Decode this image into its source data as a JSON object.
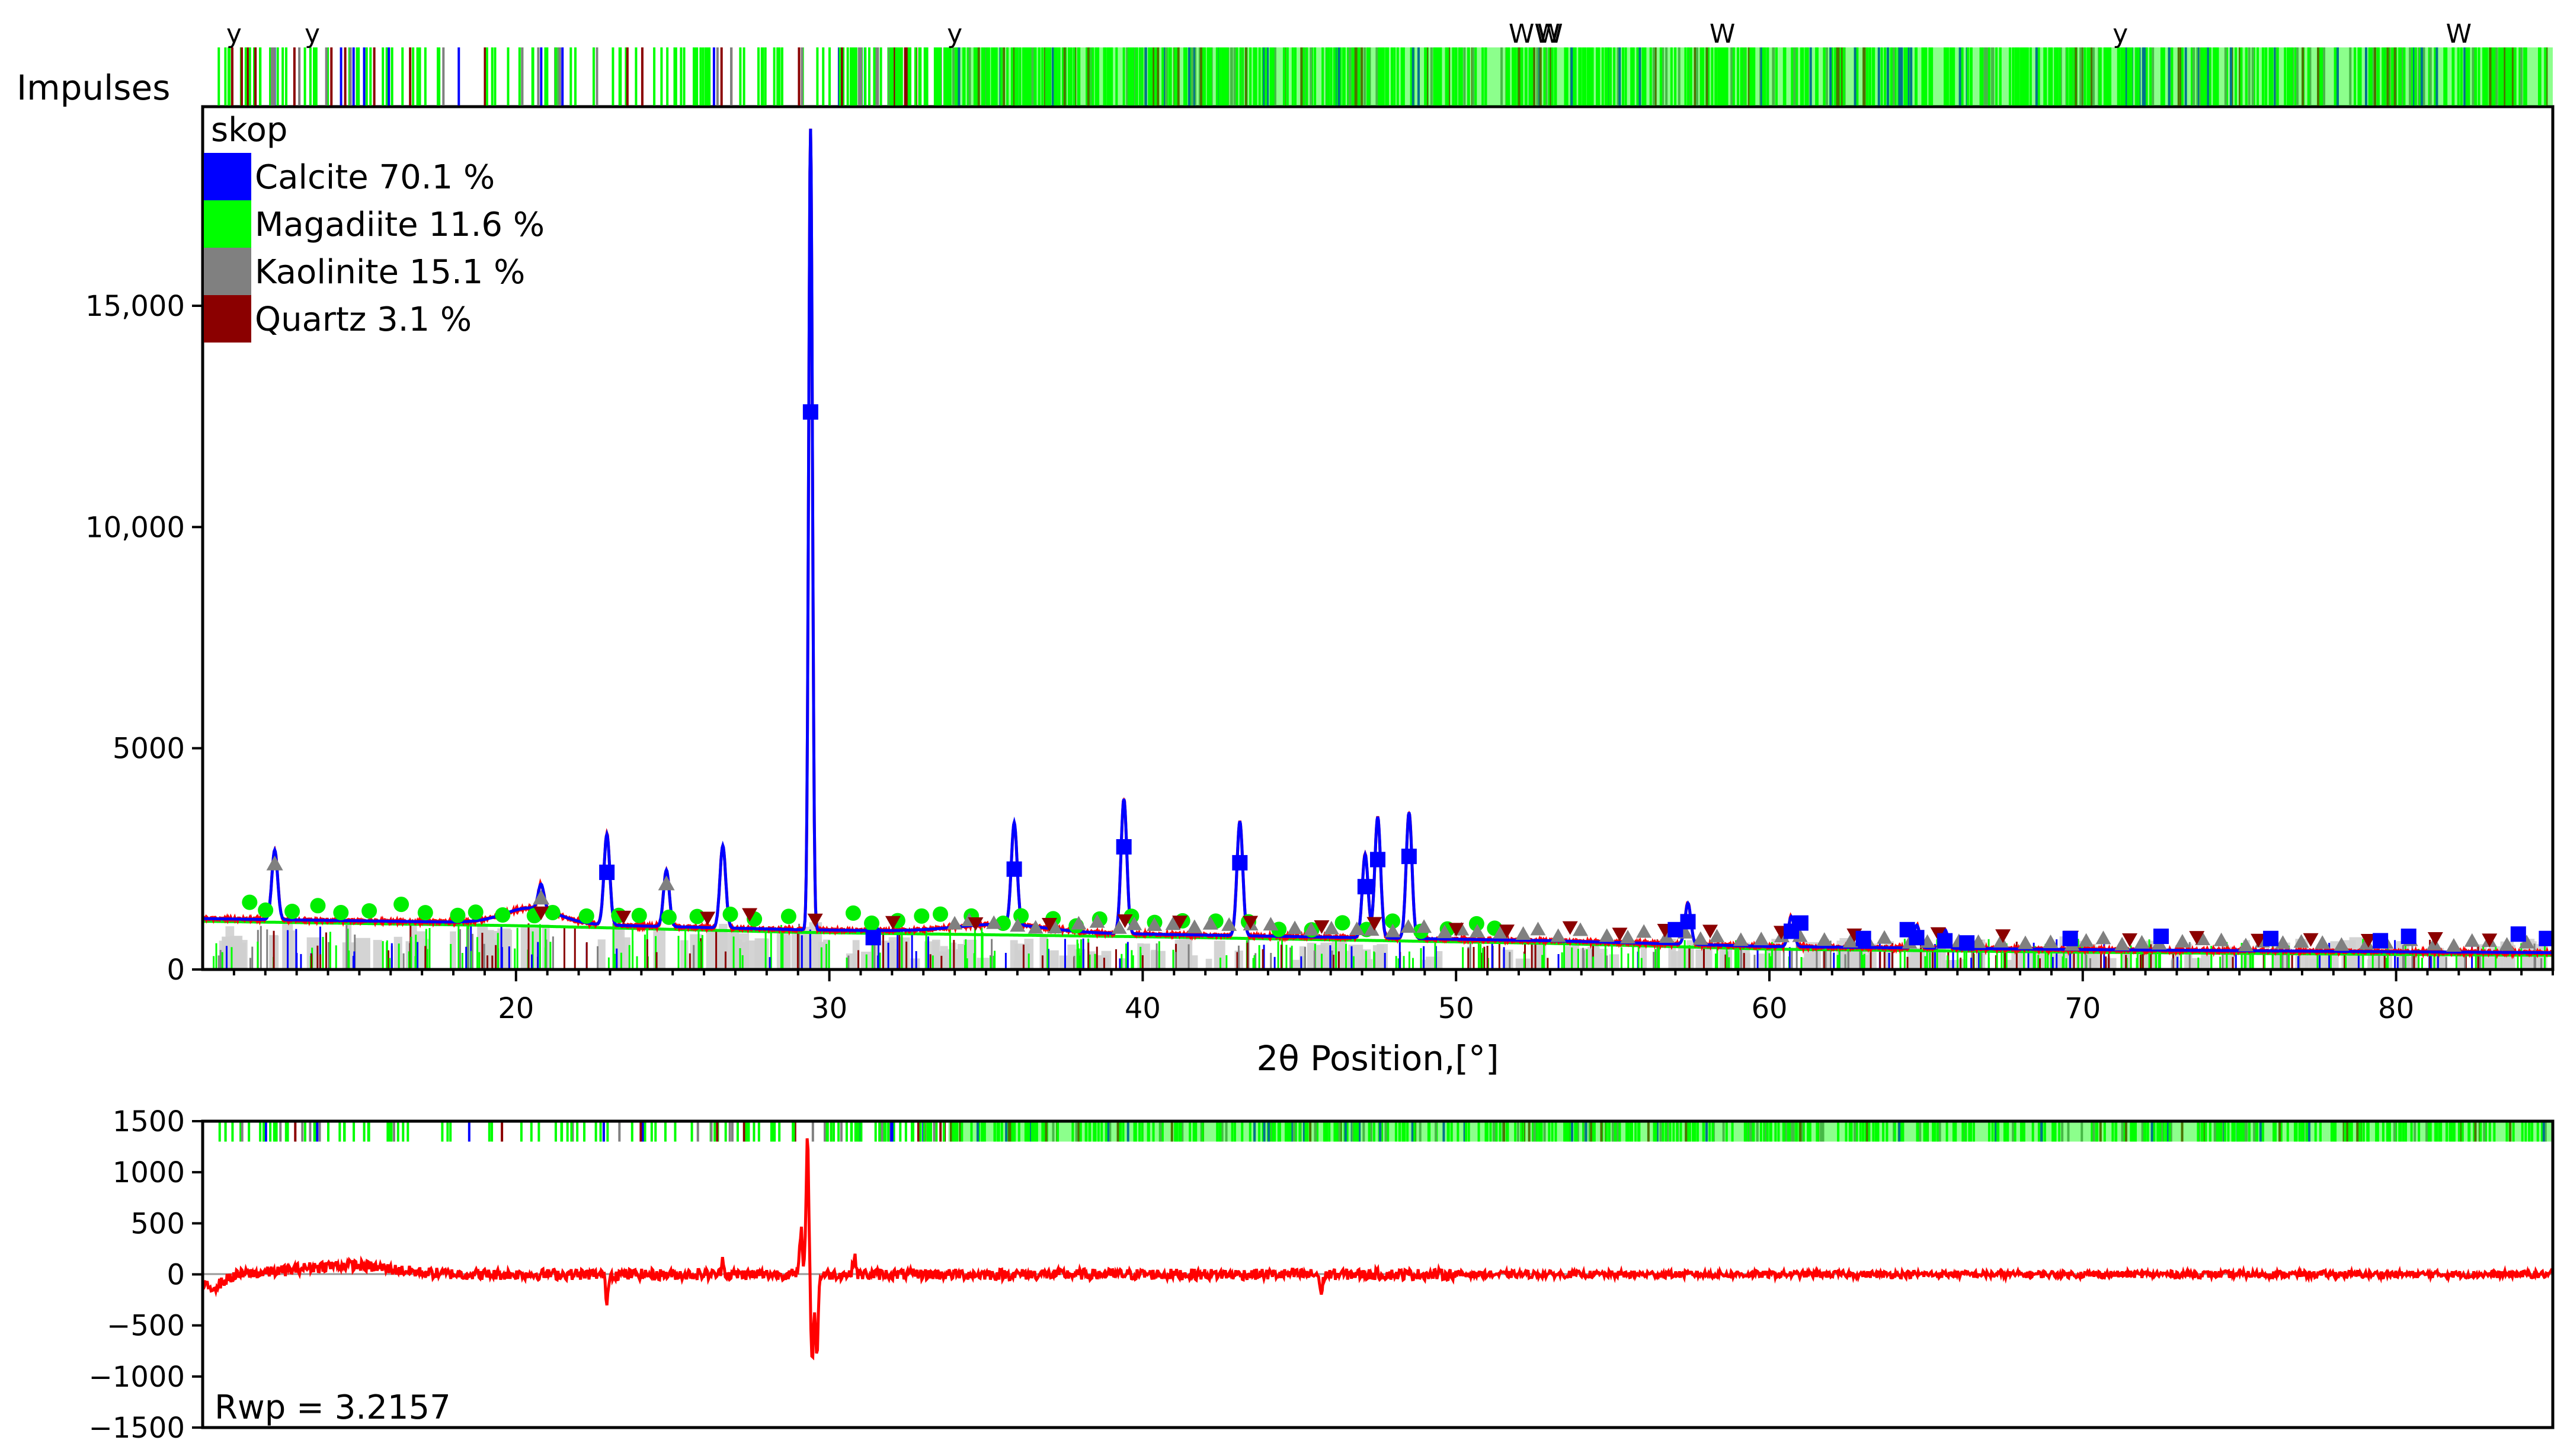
{
  "chart_data": [
    {
      "type": "line",
      "legend_title": "skop",
      "legend_position": "top-left",
      "impulses_label": "Impulses",
      "xlabel": "2θ Position,[°]",
      "ylabel": "",
      "xlim": [
        10,
        85
      ],
      "ylim": [
        0,
        19500
      ],
      "x_ticks": [
        20,
        30,
        40,
        50,
        60,
        70,
        80
      ],
      "x_tick_labels": [
        "20",
        "30",
        "40",
        "50",
        "60",
        "70",
        "80"
      ],
      "y_ticks": [
        0,
        5000,
        10000,
        15000
      ],
      "y_tick_labels": [
        "0",
        "5000",
        "10,000",
        "15,000"
      ],
      "grid": false,
      "series": [
        {
          "name": "Calcite",
          "label": "Calcite 70.1 %",
          "color": "#0000ff"
        },
        {
          "name": "Magadiite",
          "label": "Magadiite 11.6 %",
          "color": "#00ff00"
        },
        {
          "name": "Kaolinite",
          "label": "Kaolinite 15.1 %",
          "color": "#808080"
        },
        {
          "name": "Quartz",
          "label": "Quartz 3.1 %",
          "color": "#8b0000"
        }
      ],
      "pattern": {
        "baseline": [
          [
            10,
            1150
          ],
          [
            20,
            1050
          ],
          [
            29,
            900
          ],
          [
            40,
            800
          ],
          [
            53,
            650
          ],
          [
            60,
            520
          ],
          [
            70,
            450
          ],
          [
            80,
            400
          ],
          [
            85,
            380
          ]
        ],
        "peaks": [
          {
            "x": 12.3,
            "y": 2700,
            "phase": "Kaolinite"
          },
          {
            "x": 20.8,
            "y": 1600,
            "phase": "Kaolinite"
          },
          {
            "x": 22.9,
            "y": 3050,
            "phase": "Calcite"
          },
          {
            "x": 24.8,
            "y": 2250,
            "phase": "Kaolinite"
          },
          {
            "x": 26.6,
            "y": 2800,
            "phase": "Quartz"
          },
          {
            "x": 29.4,
            "y": 19000,
            "phase": "Calcite"
          },
          {
            "x": 31.4,
            "y": 1000,
            "phase": "Calcite"
          },
          {
            "x": 35.9,
            "y": 3150,
            "phase": "Calcite"
          },
          {
            "x": 39.4,
            "y": 3850,
            "phase": "Calcite"
          },
          {
            "x": 43.1,
            "y": 3350,
            "phase": "Calcite"
          },
          {
            "x": 47.1,
            "y": 2600,
            "phase": "Calcite"
          },
          {
            "x": 47.5,
            "y": 3450,
            "phase": "Calcite"
          },
          {
            "x": 48.5,
            "y": 3550,
            "phase": "Calcite"
          },
          {
            "x": 57.4,
            "y": 1500,
            "phase": "Calcite"
          },
          {
            "x": 60.7,
            "y": 1200,
            "phase": "Calcite"
          },
          {
            "x": 64.7,
            "y": 1000,
            "phase": "Calcite"
          },
          {
            "x": 65.6,
            "y": 900,
            "phase": "Calcite"
          }
        ]
      },
      "top_markers": [
        {
          "x": 11.0,
          "symbol": "y"
        },
        {
          "x": 13.5,
          "symbol": "y"
        },
        {
          "x": 34.0,
          "symbol": "y"
        },
        {
          "x": 52.5,
          "symbol": "WW"
        },
        {
          "x": 53.0,
          "symbol": "W"
        },
        {
          "x": 58.5,
          "symbol": "W"
        },
        {
          "x": 71.2,
          "symbol": "y"
        },
        {
          "x": 82.0,
          "symbol": "W"
        }
      ]
    },
    {
      "type": "line",
      "xlim": [
        10,
        85
      ],
      "ylim": [
        -1500,
        1500
      ],
      "y_ticks": [
        1500,
        1000,
        500,
        0,
        -500,
        -1000,
        -1500
      ],
      "y_tick_labels": [
        "1500",
        "1000",
        "500",
        "0",
        "−500",
        "−1000",
        "−1500"
      ],
      "annotation": "Rwp = 3.2157",
      "color": "#ff0000",
      "difference": {
        "spikes": [
          {
            "x": 29.1,
            "y": 450
          },
          {
            "x": 29.3,
            "y": 1350
          },
          {
            "x": 29.45,
            "y": -850
          },
          {
            "x": 29.6,
            "y": -800
          },
          {
            "x": 30.8,
            "y": 200
          },
          {
            "x": 22.9,
            "y": -250
          },
          {
            "x": 26.6,
            "y": 150
          },
          {
            "x": 45.7,
            "y": -200
          }
        ]
      }
    }
  ]
}
